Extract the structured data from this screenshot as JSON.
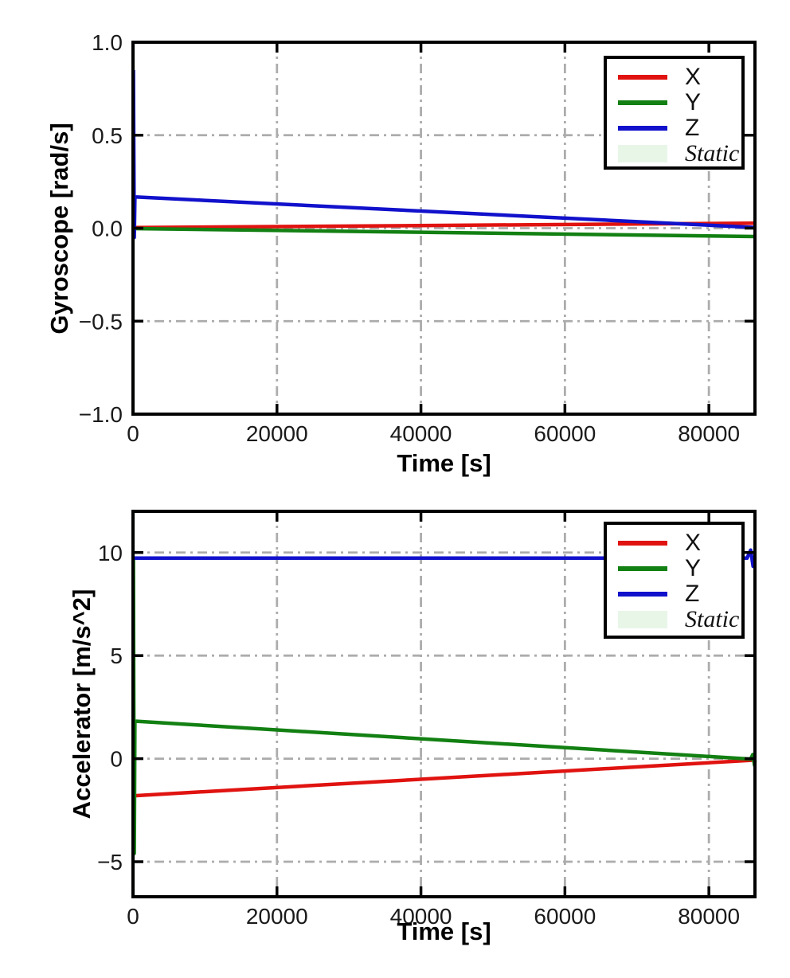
{
  "chart_data": [
    {
      "type": "line",
      "title": "",
      "xlabel": "Time [s]",
      "ylabel": "Gyroscope [rad/s]",
      "xlim": [
        0,
        86400
      ],
      "ylim": [
        -1.0,
        1.0
      ],
      "xticks": {
        "values": [
          0,
          20000,
          40000,
          60000,
          80000
        ],
        "labels": [
          "0",
          "20000",
          "40000",
          "60000",
          "80000"
        ]
      },
      "yticks": {
        "values": [
          1.0,
          0.5,
          0.0,
          -0.5,
          -1.0
        ],
        "labels": [
          "1.0",
          "0.5",
          "0.0",
          "−0.5",
          "−1.0"
        ]
      },
      "grid": true,
      "grid_color": "#acacac",
      "static_color": "#e8f6e8",
      "static_spans": [
        [
          0,
          300
        ]
      ],
      "legend": {
        "position": "upper right",
        "entries": [
          {
            "label": "X",
            "color": "#e01310",
            "type": "line"
          },
          {
            "label": "Y",
            "color": "#128012",
            "type": "line"
          },
          {
            "label": "Z",
            "color": "#1111cc",
            "type": "line"
          },
          {
            "label": "Static",
            "color": "#e8f6e8",
            "type": "patch"
          }
        ]
      },
      "series": [
        {
          "name": "X",
          "color": "#e01310",
          "points": [
            [
              0,
              0.003
            ],
            [
              86400,
              0.027
            ]
          ]
        },
        {
          "name": "Y",
          "color": "#128012",
          "points": [
            [
              0,
              -0.002
            ],
            [
              86400,
              -0.045
            ]
          ]
        },
        {
          "name": "Z",
          "color": "#1111cc",
          "points": [
            [
              60,
              0.85
            ],
            [
              180,
              -0.05
            ],
            [
              260,
              0.168
            ],
            [
              86400,
              0.004
            ]
          ]
        }
      ]
    },
    {
      "type": "line",
      "title": "",
      "xlabel": "Time [s]",
      "ylabel": "Accelerator [m/s^2]",
      "xlim": [
        0,
        86400
      ],
      "ylim": [
        -6.7,
        12.0
      ],
      "xticks": {
        "values": [
          0,
          20000,
          40000,
          60000,
          80000
        ],
        "labels": [
          "0",
          "20000",
          "40000",
          "60000",
          "80000"
        ]
      },
      "yticks": {
        "values": [
          10,
          5,
          0,
          -5
        ],
        "labels": [
          "10",
          "5",
          "0",
          "−5"
        ]
      },
      "grid": true,
      "grid_color": "#acacac",
      "static_color": "#e8f6e8",
      "static_spans": [
        [
          0,
          300
        ]
      ],
      "legend": {
        "position": "upper right",
        "entries": [
          {
            "label": "X",
            "color": "#e01310",
            "type": "line"
          },
          {
            "label": "Y",
            "color": "#128012",
            "type": "line"
          },
          {
            "label": "Z",
            "color": "#1111cc",
            "type": "line"
          },
          {
            "label": "Static",
            "color": "#e8f6e8",
            "type": "patch"
          }
        ]
      },
      "series": [
        {
          "name": "X",
          "color": "#e01310",
          "points": [
            [
              0,
              -1.8
            ],
            [
              86400,
              -0.07
            ]
          ]
        },
        {
          "name": "Y",
          "color": "#128012",
          "points": [
            [
              60,
              9.65
            ],
            [
              180,
              -4.6
            ],
            [
              260,
              1.82
            ],
            [
              85800,
              -0.02
            ],
            [
              86100,
              0.2
            ],
            [
              86350,
              -0.33
            ],
            [
              86400,
              -0.08
            ]
          ]
        },
        {
          "name": "Z",
          "color": "#1111cc",
          "points": [
            [
              0,
              9.73
            ],
            [
              85300,
              9.73
            ],
            [
              85800,
              10.12
            ],
            [
              86150,
              9.33
            ],
            [
              86400,
              9.75
            ]
          ]
        }
      ]
    }
  ]
}
